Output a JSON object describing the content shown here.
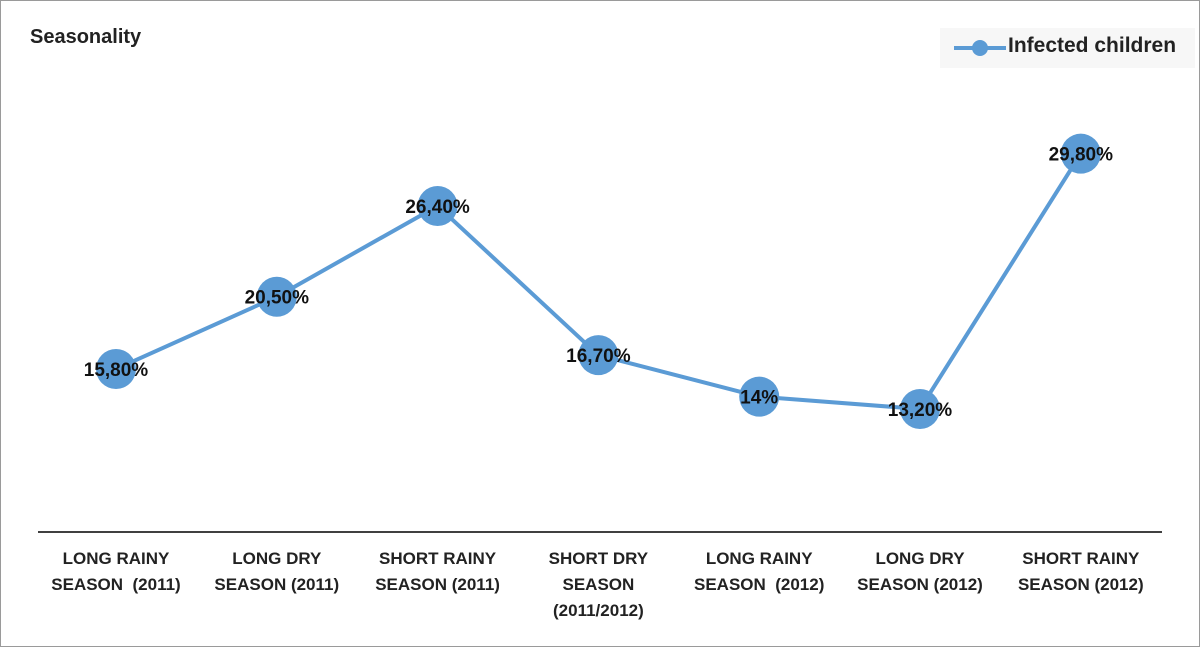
{
  "chart_data": {
    "type": "line",
    "title": "Seasonality",
    "categories": [
      "LONG RAINY SEASON  (2011)",
      "LONG DRY SEASON (2011)",
      "SHORT RAINY SEASON (2011)",
      "SHORT DRY SEASON (2011/2012)",
      "LONG RAINY SEASON  (2012)",
      "LONG DRY SEASON (2012)",
      "SHORT RAINY SEASON (2012)"
    ],
    "category_lines": [
      [
        "LONG RAINY",
        "SEASON  (2011)"
      ],
      [
        "LONG DRY",
        "SEASON (2011)"
      ],
      [
        "SHORT RAINY",
        "SEASON (2011)"
      ],
      [
        "SHORT DRY",
        "SEASON",
        "(2011/2012)"
      ],
      [
        "LONG RAINY",
        "SEASON  (2012)"
      ],
      [
        "LONG DRY",
        "SEASON (2012)"
      ],
      [
        "SHORT RAINY",
        "SEASON (2012)"
      ]
    ],
    "series": [
      {
        "name": "Infected children",
        "values": [
          15.8,
          20.5,
          26.4,
          16.7,
          14,
          13.2,
          29.8
        ],
        "labels": [
          "15,80%",
          "20,50%",
          "26,40%",
          "16,70%",
          "14%",
          "13,20%",
          "29,80%"
        ],
        "color": "#5b9bd5"
      }
    ],
    "xlabel": "",
    "ylabel": "",
    "ylim": [
      0,
      35
    ],
    "grid": false,
    "legend_position": "top-right"
  },
  "colors": {
    "series": "#5b9bd5",
    "axis": "#404040",
    "text": "#222222"
  }
}
